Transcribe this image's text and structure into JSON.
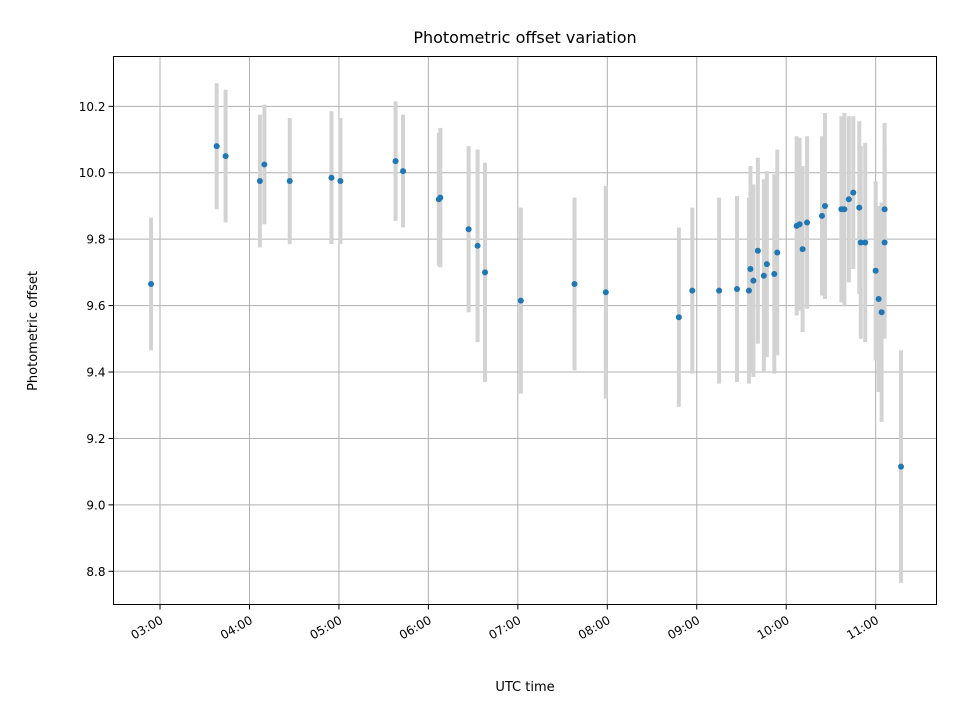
{
  "chart_data": {
    "type": "scatter",
    "title": "Photometric offset variation",
    "xlabel": "UTC time",
    "ylabel": "Photometric offset",
    "x_tick_labels": [
      "03:00",
      "04:00",
      "05:00",
      "06:00",
      "07:00",
      "08:00",
      "09:00",
      "10:00",
      "11:00"
    ],
    "x_ticks_hours": [
      3,
      4,
      5,
      6,
      7,
      8,
      9,
      10,
      11
    ],
    "xlim_hours": [
      2.48,
      11.68
    ],
    "y_tick_labels": [
      "8.8",
      "9.0",
      "9.2",
      "9.4",
      "9.6",
      "9.8",
      "10.0",
      "10.2"
    ],
    "y_ticks": [
      8.8,
      9.0,
      9.2,
      9.4,
      9.6,
      9.8,
      10.0,
      10.2
    ],
    "ylim": [
      8.7,
      10.35
    ],
    "grid": true,
    "marker_color": "#1f77b4",
    "errorbar_color": "#d3d3d3",
    "series": [
      {
        "time": [
          "02:54",
          "03:38",
          "03:44",
          "04:07",
          "04:10",
          "04:27",
          "04:55",
          "05:01",
          "05:38",
          "05:43",
          "06:07",
          "06:08",
          "06:27",
          "06:33",
          "06:38",
          "07:02",
          "07:38",
          "07:59",
          "08:48",
          "08:57",
          "09:15",
          "09:27",
          "09:35",
          "09:36",
          "09:38",
          "09:41",
          "09:45",
          "09:47",
          "09:52",
          "09:54",
          "10:07",
          "10:09",
          "10:11",
          "10:14",
          "10:24",
          "10:26",
          "10:37",
          "10:39",
          "10:42",
          "10:45",
          "10:49",
          "10:50",
          "10:53",
          "11:00",
          "11:02",
          "11:04",
          "11:06",
          "11:06",
          "11:17"
        ],
        "y": [
          9.665,
          10.08,
          10.05,
          9.975,
          10.025,
          9.975,
          9.985,
          9.975,
          10.035,
          10.005,
          9.92,
          9.925,
          9.83,
          9.78,
          9.7,
          9.615,
          9.665,
          9.64,
          9.565,
          9.645,
          9.645,
          9.65,
          9.645,
          9.71,
          9.675,
          9.765,
          9.69,
          9.725,
          9.695,
          9.76,
          9.84,
          9.845,
          9.77,
          9.85,
          9.87,
          9.9,
          9.89,
          9.89,
          9.92,
          9.94,
          9.895,
          9.79,
          9.79,
          9.705,
          9.62,
          9.58,
          9.89,
          9.79,
          9.115
        ],
        "yerr": [
          0.2,
          0.19,
          0.2,
          0.2,
          0.18,
          0.19,
          0.2,
          0.19,
          0.18,
          0.17,
          0.2,
          0.21,
          0.25,
          0.29,
          0.33,
          0.28,
          0.26,
          0.32,
          0.27,
          0.25,
          0.28,
          0.28,
          0.28,
          0.31,
          0.29,
          0.28,
          0.29,
          0.28,
          0.3,
          0.31,
          0.27,
          0.26,
          0.25,
          0.26,
          0.24,
          0.28,
          0.28,
          0.29,
          0.25,
          0.23,
          0.26,
          0.29,
          0.3,
          0.27,
          0.28,
          0.33,
          0.26,
          0.29,
          0.35
        ]
      }
    ]
  }
}
